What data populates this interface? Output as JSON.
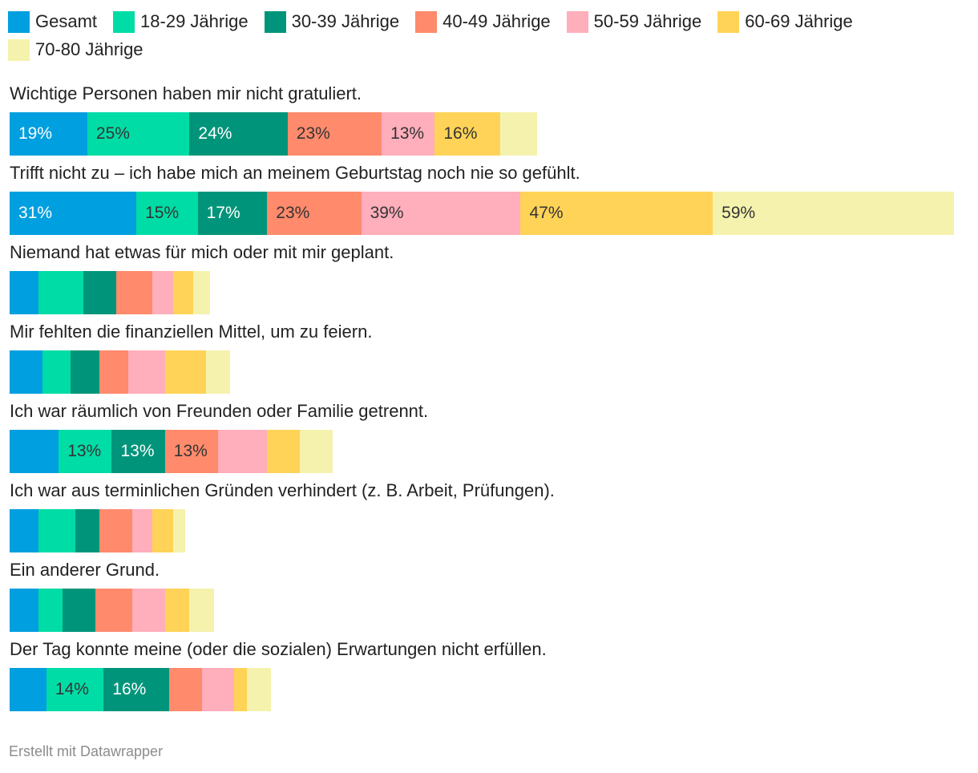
{
  "chart_data": {
    "type": "bar",
    "stacked": true,
    "orientation": "horizontal",
    "legend_position": "top-left",
    "series": [
      {
        "name": "Gesamt",
        "color": "#009fdf",
        "label_color": "#ffffff"
      },
      {
        "name": "18-29 Jährige",
        "color": "#00dca6",
        "label_color": "#333333"
      },
      {
        "name": "30-39 Jährige",
        "color": "#00957a",
        "label_color": "#ffffff"
      },
      {
        "name": "40-49 Jährige",
        "color": "#ff8a6c",
        "label_color": "#333333"
      },
      {
        "name": "50-59 Jährige",
        "color": "#ffaebb",
        "label_color": "#333333"
      },
      {
        "name": "60-69 Jährige",
        "color": "#ffd357",
        "label_color": "#333333"
      },
      {
        "name": "70-80 Jährige",
        "color": "#f4f2ad",
        "label_color": "#333333"
      }
    ],
    "categories": [
      {
        "label": "Wichtige Personen haben mir nicht gratuliert.",
        "values": [
          19,
          25,
          24,
          23,
          13,
          16,
          9
        ],
        "value_labels": [
          "19%",
          "25%",
          "24%",
          "23%",
          "13%",
          "16%",
          ""
        ]
      },
      {
        "label": "Trifft nicht zu – ich habe mich an meinem Geburtstag noch nie so gefühlt.",
        "values": [
          31,
          15,
          17,
          23,
          39,
          47,
          59
        ],
        "value_labels": [
          "31%",
          "15%",
          "17%",
          "23%",
          "39%",
          "47%",
          "59%"
        ]
      },
      {
        "label": "Niemand hat etwas für mich oder mit mir geplant.",
        "values": [
          7,
          11,
          8,
          9,
          5,
          5,
          4
        ],
        "value_labels": [
          "",
          "",
          "",
          "",
          "",
          "",
          ""
        ]
      },
      {
        "label": "Mir fehlten die finanziellen Mittel, um zu feiern.",
        "values": [
          8,
          7,
          7,
          7,
          9,
          10,
          6
        ],
        "value_labels": [
          "",
          "",
          "",
          "",
          "",
          "",
          ""
        ]
      },
      {
        "label": "Ich war räumlich von Freunden oder Familie getrennt.",
        "values": [
          12,
          13,
          13,
          13,
          12,
          8,
          8
        ],
        "value_labels": [
          "",
          "13%",
          "13%",
          "13%",
          "",
          "",
          ""
        ]
      },
      {
        "label": "Ich war aus terminlichen Gründen verhindert (z. B. Arbeit, Prüfungen).",
        "values": [
          7,
          9,
          6,
          8,
          5,
          5,
          3
        ],
        "value_labels": [
          "",
          "",
          "",
          "",
          "",
          "",
          ""
        ]
      },
      {
        "label": "Ein anderer Grund.",
        "values": [
          7,
          6,
          8,
          9,
          8,
          6,
          6
        ],
        "value_labels": [
          "",
          "",
          "",
          "",
          "",
          "",
          ""
        ]
      },
      {
        "label": "Der Tag konnte meine (oder die sozialen) Erwartungen nicht erfüllen.",
        "values": [
          9,
          14,
          16,
          8,
          8,
          3,
          6
        ],
        "value_labels": [
          "",
          "14%",
          "16%",
          "",
          "",
          "",
          ""
        ]
      }
    ]
  },
  "footer": {
    "credit": "Erstellt mit Datawrapper"
  }
}
